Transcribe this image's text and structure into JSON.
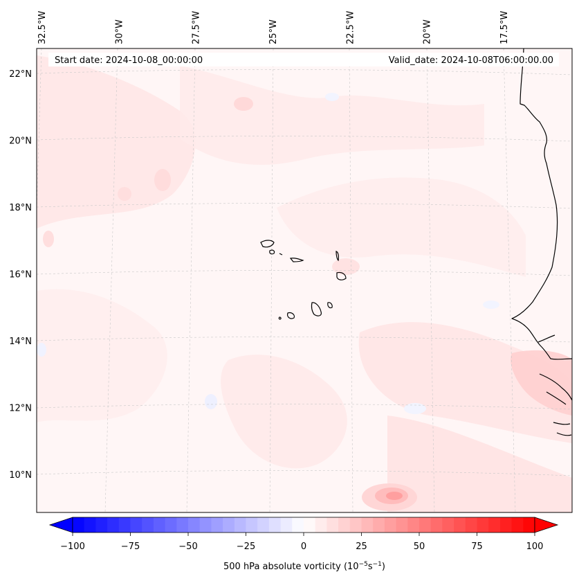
{
  "header": {
    "start_date": "Start date: 2024-10-08_00:00:00",
    "valid_date": "Valid_date: 2024-10-08T06:00:00.00"
  },
  "map": {
    "longitude_ticks": [
      {
        "lon": -32.5,
        "label": "32.5°W"
      },
      {
        "lon": -30.0,
        "label": "30°W"
      },
      {
        "lon": -27.5,
        "label": "27.5°W"
      },
      {
        "lon": -25.0,
        "label": "25°W"
      },
      {
        "lon": -22.5,
        "label": "22.5°W"
      },
      {
        "lon": -20.0,
        "label": "20°W"
      },
      {
        "lon": -17.5,
        "label": "17.5°W"
      }
    ],
    "latitude_ticks": [
      {
        "lat": 22,
        "label": "22°N"
      },
      {
        "lat": 20,
        "label": "20°N"
      },
      {
        "lat": 18,
        "label": "18°N"
      },
      {
        "lat": 16,
        "label": "16°N"
      },
      {
        "lat": 14,
        "label": "14°N"
      },
      {
        "lat": 12,
        "label": "12°N"
      },
      {
        "lat": 10,
        "label": "10°N"
      }
    ],
    "gridlines": true
  },
  "colorbar": {
    "label": "500 hPa absolute vorticity (10",
    "label_exp1": "−5",
    "label_mid": "s",
    "label_exp2": "−1",
    "label_end": ")",
    "min": -100,
    "max": 100,
    "ticks": [
      {
        "value": -100,
        "label": "−100"
      },
      {
        "value": -75,
        "label": "−75"
      },
      {
        "value": -50,
        "label": "−50"
      },
      {
        "value": -25,
        "label": "−25"
      },
      {
        "value": 0,
        "label": "0"
      },
      {
        "value": 25,
        "label": "25"
      },
      {
        "value": 50,
        "label": "50"
      },
      {
        "value": 75,
        "label": "75"
      },
      {
        "value": 100,
        "label": "100"
      }
    ],
    "colors": {
      "low": "#0000ff",
      "mid": "#ffffff",
      "high": "#ff0000"
    }
  }
}
